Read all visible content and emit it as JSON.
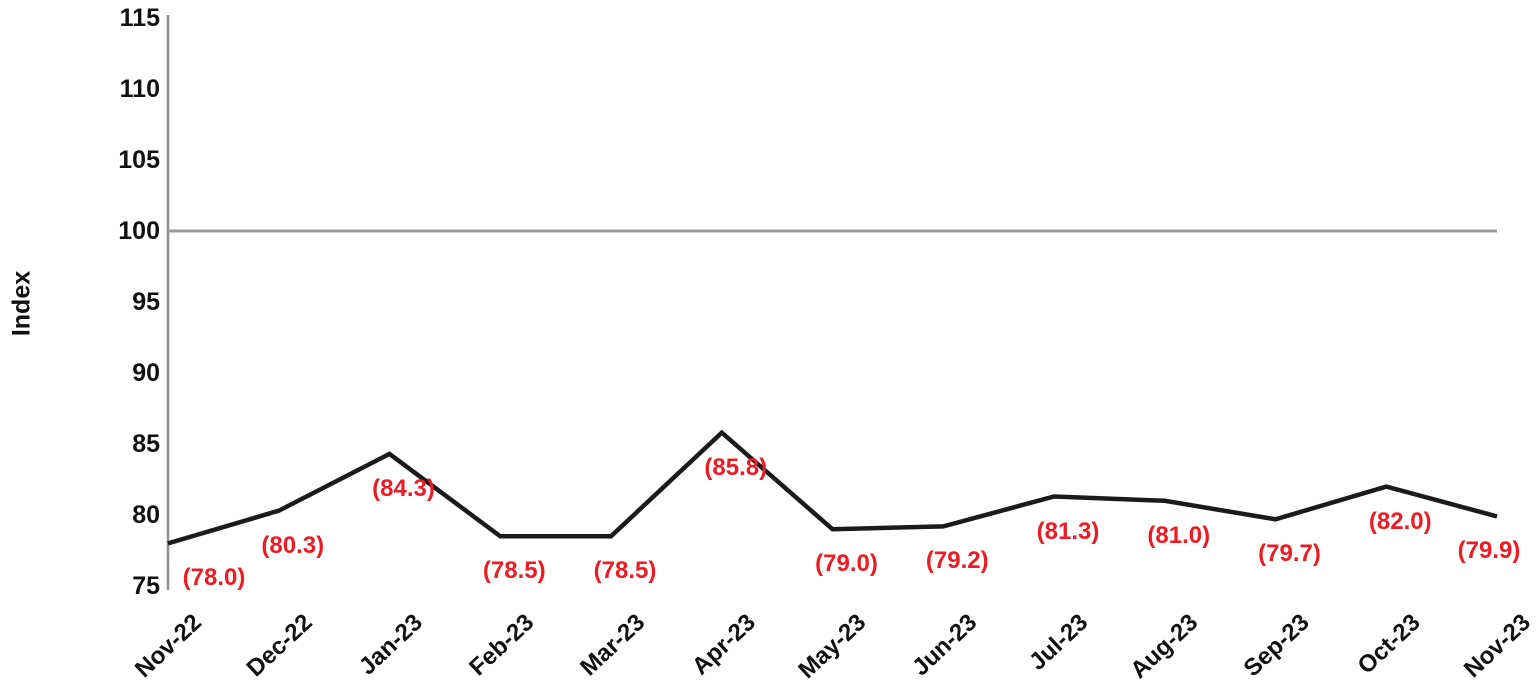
{
  "chart_data": {
    "type": "line",
    "title": "",
    "ylabel": "Index",
    "xlabel": "",
    "categories": [
      "Nov-22",
      "Dec-22",
      "Jan-23",
      "Feb-23",
      "Mar-23",
      "Apr-23",
      "May-23",
      "Jun-23",
      "Jul-23",
      "Aug-23",
      "Sep-23",
      "Oct-23",
      "Nov-23"
    ],
    "series": [
      {
        "name": "Index",
        "values": [
          78.0,
          80.3,
          84.3,
          78.5,
          78.5,
          85.8,
          79.0,
          79.2,
          81.3,
          81.0,
          79.7,
          82.0,
          79.9
        ],
        "data_labels": [
          "(78.0)",
          "(80.3)",
          "(84.3)",
          "(78.5)",
          "(78.5)",
          "(85.8)",
          "(79.0)",
          "(79.2)",
          "(81.3)",
          "(81.0)",
          "(79.7)",
          "(82.0)",
          "(79.9)"
        ]
      }
    ],
    "yticks": [
      "115",
      "110",
      "105",
      "100",
      "95",
      "90",
      "85",
      "80",
      "75"
    ],
    "ylim": [
      75,
      115
    ],
    "reference_line": 100,
    "grid": false,
    "legend": null,
    "colors": {
      "series_line": "#1b1b1b",
      "data_label": "#ed1c24",
      "axis_line": "#8f8f8f",
      "reference_line": "#9c9c9c",
      "tick_text": "#111111",
      "background": "#ffffff"
    }
  }
}
